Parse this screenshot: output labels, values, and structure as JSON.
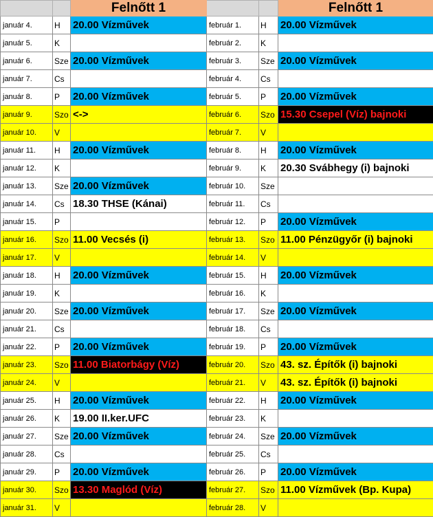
{
  "header": {
    "left_title": "Felnőtt 1",
    "right_title": "Felnőtt 1"
  },
  "colors": {
    "blue": "#00b0f0",
    "yellow": "#ffff00",
    "header": "#f4b183",
    "highlight_bg": "#000000",
    "highlight_text": "#ff1a1a"
  },
  "left": [
    {
      "date": "január 4.",
      "day": "H",
      "event": "20.00 Vízművek",
      "style": "blue"
    },
    {
      "date": "január 5.",
      "day": "K",
      "event": "",
      "style": "white"
    },
    {
      "date": "január 6.",
      "day": "Sze",
      "event": "20.00 Vízművek",
      "style": "blue"
    },
    {
      "date": "január 7.",
      "day": "Cs",
      "event": "",
      "style": "white"
    },
    {
      "date": "január 8.",
      "day": "P",
      "event": "20.00 Vízművek",
      "style": "blue"
    },
    {
      "date": "január 9.",
      "day": "Szo",
      "event": "<->",
      "style": "yellow"
    },
    {
      "date": "január 10.",
      "day": "V",
      "event": "",
      "style": "yellow"
    },
    {
      "date": "január 11.",
      "day": "H",
      "event": "20.00 Vízművek",
      "style": "blue"
    },
    {
      "date": "január 12.",
      "day": "K",
      "event": "",
      "style": "white"
    },
    {
      "date": "január 13.",
      "day": "Sze",
      "event": "20.00 Vízművek",
      "style": "blue"
    },
    {
      "date": "január 14.",
      "day": "Cs",
      "event": "18.30 THSE (Kánai)",
      "style": "white"
    },
    {
      "date": "január 15.",
      "day": "P",
      "event": "",
      "style": "white"
    },
    {
      "date": "január 16.",
      "day": "Szo",
      "event": "11.00 Vecsés (i)",
      "style": "yellow"
    },
    {
      "date": "január 17.",
      "day": "V",
      "event": "",
      "style": "yellow"
    },
    {
      "date": "január 18.",
      "day": "H",
      "event": "20.00 Vízművek",
      "style": "blue"
    },
    {
      "date": "január 19.",
      "day": "K",
      "event": "",
      "style": "white"
    },
    {
      "date": "január 20.",
      "day": "Sze",
      "event": "20.00 Vízművek",
      "style": "blue"
    },
    {
      "date": "január 21.",
      "day": "Cs",
      "event": "",
      "style": "white"
    },
    {
      "date": "január 22.",
      "day": "P",
      "event": "20.00 Vízművek",
      "style": "blue"
    },
    {
      "date": "január 23.",
      "day": "Szo",
      "event": "11.00 Biatorbágy (Víz)",
      "style": "black"
    },
    {
      "date": "január 24.",
      "day": "V",
      "event": "",
      "style": "yellow"
    },
    {
      "date": "január 25.",
      "day": "H",
      "event": "20.00 Vízművek",
      "style": "blue"
    },
    {
      "date": "január 26.",
      "day": "K",
      "event": "19.00 II.ker.UFC",
      "style": "white"
    },
    {
      "date": "január 27.",
      "day": "Sze",
      "event": "20.00 Vízművek",
      "style": "blue"
    },
    {
      "date": "január 28.",
      "day": "Cs",
      "event": "",
      "style": "white"
    },
    {
      "date": "január 29.",
      "day": "P",
      "event": "20.00 Vízművek",
      "style": "blue"
    },
    {
      "date": "január 30.",
      "day": "Szo",
      "event": "13.30 Maglód (Víz)",
      "style": "black"
    },
    {
      "date": "január 31.",
      "day": "V",
      "event": "",
      "style": "yellow"
    }
  ],
  "right": [
    {
      "date": "február 1.",
      "day": "H",
      "event": "20.00 Vízművek",
      "style": "blue"
    },
    {
      "date": "február 2.",
      "day": "K",
      "event": "",
      "style": "white"
    },
    {
      "date": "február 3.",
      "day": "Sze",
      "event": "20.00 Vízművek",
      "style": "blue"
    },
    {
      "date": "február 4.",
      "day": "Cs",
      "event": "",
      "style": "white"
    },
    {
      "date": "február 5.",
      "day": "P",
      "event": "20.00 Vízművek",
      "style": "blue"
    },
    {
      "date": "február 6.",
      "day": "Szo",
      "event": "15.30 Csepel (Víz) bajnoki",
      "style": "black"
    },
    {
      "date": "február 7.",
      "day": "V",
      "event": "",
      "style": "yellow"
    },
    {
      "date": "február 8.",
      "day": "H",
      "event": "20.00 Vízművek",
      "style": "blue"
    },
    {
      "date": "február 9.",
      "day": "K",
      "event": "20.30 Svábhegy (i) bajnoki",
      "style": "white"
    },
    {
      "date": "február 10.",
      "day": "Sze",
      "event": "",
      "style": "white"
    },
    {
      "date": "február 11.",
      "day": "Cs",
      "event": "",
      "style": "white"
    },
    {
      "date": "február 12.",
      "day": "P",
      "event": "20.00 Vízművek",
      "style": "blue"
    },
    {
      "date": "február 13.",
      "day": "Szo",
      "event": "11.00 Pénzügyőr (i) bajnoki",
      "style": "yellow"
    },
    {
      "date": "február 14.",
      "day": "V",
      "event": "",
      "style": "yellow"
    },
    {
      "date": "február 15.",
      "day": "H",
      "event": "20.00 Vízművek",
      "style": "blue"
    },
    {
      "date": "február 16.",
      "day": "K",
      "event": "",
      "style": "white"
    },
    {
      "date": "február 17.",
      "day": "Sze",
      "event": "20.00 Vízművek",
      "style": "blue"
    },
    {
      "date": "február 18.",
      "day": "Cs",
      "event": "",
      "style": "white"
    },
    {
      "date": "február 19.",
      "day": "P",
      "event": "20.00 Vízművek",
      "style": "blue"
    },
    {
      "date": "február 20.",
      "day": "Szo",
      "event": "43. sz. Építők (i) bajnoki",
      "style": "yellow"
    },
    {
      "date": "február 21.",
      "day": "V",
      "event": "43. sz. Építők (i) bajnoki",
      "style": "yellow"
    },
    {
      "date": "február 22.",
      "day": "H",
      "event": "20.00 Vízművek",
      "style": "blue"
    },
    {
      "date": "február 23.",
      "day": "K",
      "event": "",
      "style": "white"
    },
    {
      "date": "február 24.",
      "day": "Sze",
      "event": "20.00 Vízművek",
      "style": "blue"
    },
    {
      "date": "február 25.",
      "day": "Cs",
      "event": "",
      "style": "white"
    },
    {
      "date": "február 26.",
      "day": "P",
      "event": "20.00 Vízművek",
      "style": "blue"
    },
    {
      "date": "február 27.",
      "day": "Szo",
      "event": "11.00 Vízművek (Bp. Kupa)",
      "style": "yellow"
    },
    {
      "date": "február 28.",
      "day": "V",
      "event": "",
      "style": "yellow"
    }
  ]
}
